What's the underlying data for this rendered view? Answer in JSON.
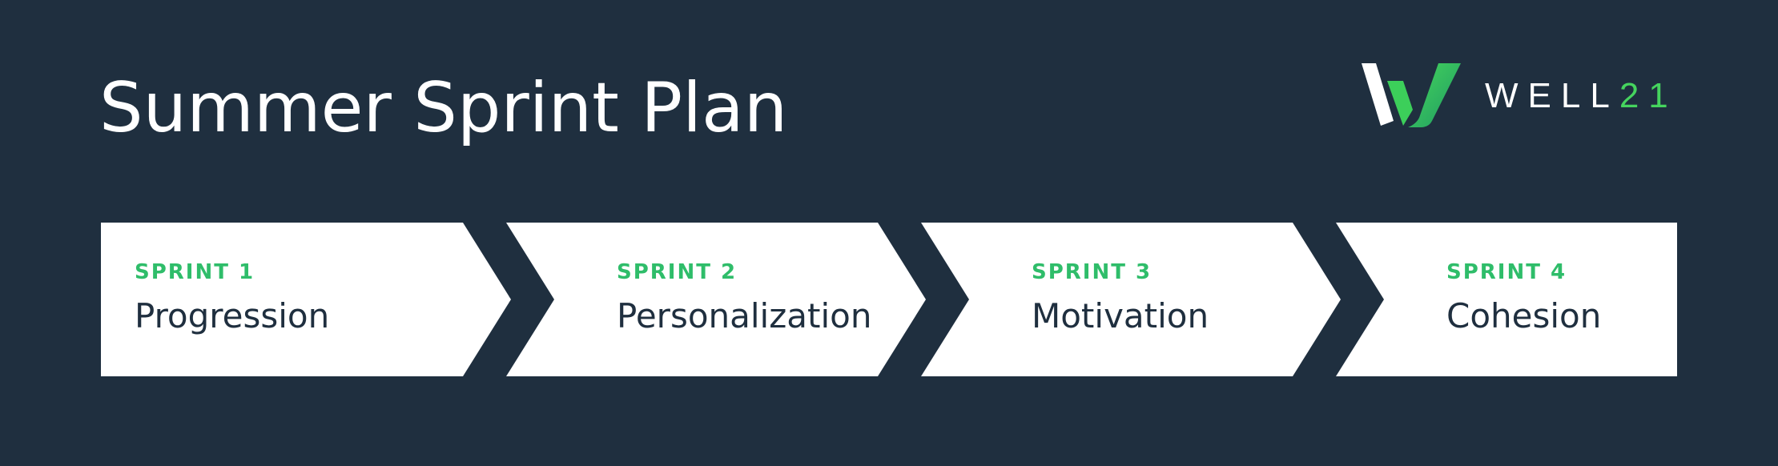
{
  "title": "Summer Sprint Plan",
  "brand": {
    "name": "WELL",
    "accent": "21",
    "logo": "well21-logo-icon"
  },
  "colors": {
    "background": "#1f2f3f",
    "card": "#ffffff",
    "accent": "#2fbd6a",
    "text_dark": "#1f2f3f"
  },
  "steps": [
    {
      "label": "SPRINT 1",
      "name": "Progression"
    },
    {
      "label": "SPRINT 2",
      "name": "Personalization"
    },
    {
      "label": "SPRINT 3",
      "name": "Motivation"
    },
    {
      "label": "SPRINT 4",
      "name": "Cohesion"
    }
  ]
}
